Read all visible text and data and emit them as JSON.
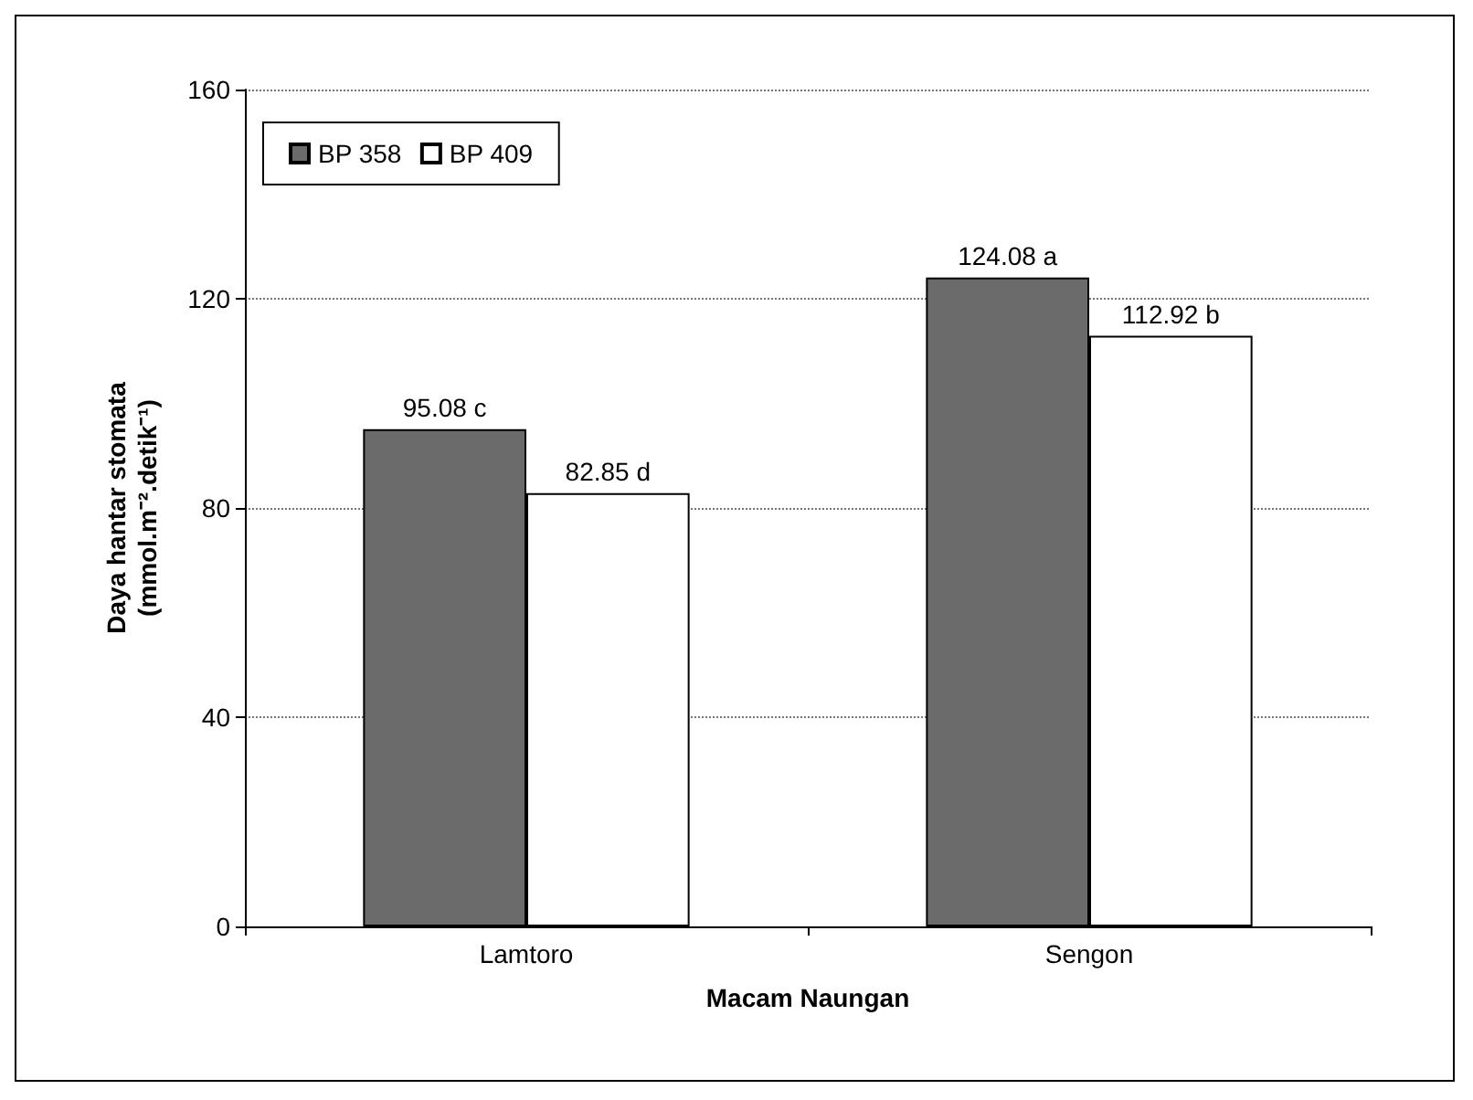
{
  "chart_data": {
    "type": "bar",
    "xlabel": "Macam Naungan",
    "ylabel": "Daya hantar stomata\n(mmol.m⁻².detik⁻¹)",
    "categories": [
      "Lamtoro",
      "Sengon"
    ],
    "series": [
      {
        "name": "BP 358",
        "color": "#6b6b6b",
        "values": [
          95.08,
          124.08
        ],
        "value_labels": [
          "95.08 c",
          "124.08 a"
        ]
      },
      {
        "name": "BP 409",
        "color": "#ffffff",
        "values": [
          82.85,
          112.92
        ],
        "value_labels": [
          "82.85 d",
          "112.92 b"
        ]
      }
    ],
    "ylim": [
      0,
      160
    ],
    "yticks": [
      0,
      40,
      80,
      120,
      160
    ],
    "grid": "y",
    "legend": "top left"
  }
}
